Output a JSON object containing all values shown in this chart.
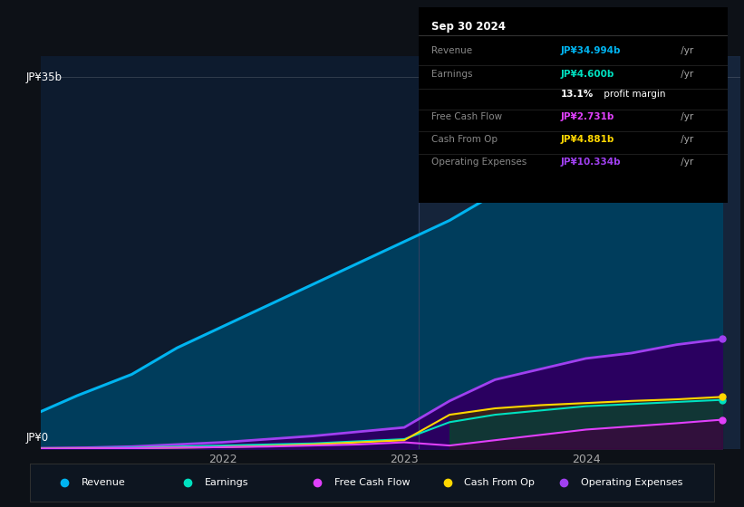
{
  "background_color": "#0d1117",
  "chart_bg": "#0d1b2e",
  "ylabel_top": "JP¥35b",
  "ylabel_bottom": "JP¥0",
  "x_labels": [
    "2022",
    "2023",
    "2024"
  ],
  "legend_items": [
    "Revenue",
    "Earnings",
    "Free Cash Flow",
    "Cash From Op",
    "Operating Expenses"
  ],
  "legend_colors": [
    "#00b4f0",
    "#00e0c0",
    "#e040fb",
    "#ffd700",
    "#a040f0"
  ],
  "info_box": {
    "date": "Sep 30 2024",
    "rows": [
      {
        "label": "Revenue",
        "value": "JP¥34.994b",
        "unit": " /yr",
        "color": "#00b4f0"
      },
      {
        "label": "Earnings",
        "value": "JP¥4.600b",
        "unit": " /yr",
        "color": "#00e0c0"
      },
      {
        "label": "",
        "value": "13.1%",
        "unit": " profit margin",
        "color": "#ffffff",
        "is_margin": true
      },
      {
        "label": "Free Cash Flow",
        "value": "JP¥2.731b",
        "unit": " /yr",
        "color": "#e040fb"
      },
      {
        "label": "Cash From Op",
        "value": "JP¥4.881b",
        "unit": " /yr",
        "color": "#ffd700"
      },
      {
        "label": "Operating Expenses",
        "value": "JP¥10.334b",
        "unit": " /yr",
        "color": "#a040f0"
      }
    ]
  },
  "revenue": {
    "x": [
      2021.0,
      2021.2,
      2021.5,
      2021.75,
      2022.0,
      2022.25,
      2022.5,
      2022.75,
      2023.0,
      2023.25,
      2023.5,
      2023.75,
      2024.0,
      2024.25,
      2024.5,
      2024.75
    ],
    "y": [
      3.5,
      5.0,
      7.0,
      9.5,
      11.5,
      13.5,
      15.5,
      17.5,
      19.5,
      21.5,
      24.0,
      27.0,
      29.5,
      31.5,
      33.5,
      34.994
    ],
    "color": "#00b4f0",
    "fill_color": "#003d5c"
  },
  "operating_expenses": {
    "x": [
      2021.0,
      2021.25,
      2021.5,
      2021.75,
      2022.0,
      2022.25,
      2022.5,
      2022.75,
      2023.0,
      2023.25,
      2023.5,
      2023.75,
      2024.0,
      2024.25,
      2024.5,
      2024.75
    ],
    "y": [
      0.05,
      0.1,
      0.2,
      0.4,
      0.6,
      0.9,
      1.2,
      1.6,
      2.0,
      4.5,
      6.5,
      7.5,
      8.5,
      9.0,
      9.8,
      10.334
    ],
    "color": "#a040f0",
    "fill_color": "#2a0060"
  },
  "earnings": {
    "x": [
      2021.0,
      2021.25,
      2021.5,
      2021.75,
      2022.0,
      2022.25,
      2022.5,
      2022.75,
      2023.0,
      2023.25,
      2023.5,
      2023.75,
      2024.0,
      2024.25,
      2024.5,
      2024.75
    ],
    "y": [
      0.01,
      0.05,
      0.1,
      0.2,
      0.3,
      0.4,
      0.5,
      0.7,
      0.9,
      2.5,
      3.2,
      3.6,
      4.0,
      4.2,
      4.4,
      4.6
    ],
    "color": "#00e0c0",
    "fill_color": "#004040"
  },
  "free_cash_flow": {
    "x": [
      2021.0,
      2021.25,
      2021.5,
      2021.75,
      2022.0,
      2022.25,
      2022.5,
      2022.75,
      2023.0,
      2023.25,
      2023.5,
      2023.75,
      2024.0,
      2024.25,
      2024.5,
      2024.75
    ],
    "y": [
      0.0,
      0.02,
      0.05,
      0.1,
      0.15,
      0.2,
      0.3,
      0.4,
      0.6,
      0.3,
      0.8,
      1.3,
      1.8,
      2.1,
      2.4,
      2.731
    ],
    "color": "#e040fb",
    "fill_color": "#400040"
  },
  "cash_from_op": {
    "x": [
      2021.0,
      2021.25,
      2021.5,
      2021.75,
      2022.0,
      2022.25,
      2022.5,
      2022.75,
      2023.0,
      2023.25,
      2023.5,
      2023.75,
      2024.0,
      2024.25,
      2024.5,
      2024.75
    ],
    "y": [
      0.0,
      0.02,
      0.05,
      0.1,
      0.15,
      0.25,
      0.4,
      0.6,
      0.8,
      3.2,
      3.8,
      4.1,
      4.3,
      4.5,
      4.65,
      4.881
    ],
    "color": "#ffd700",
    "fill_color": "#403000"
  },
  "ylim": [
    0,
    37
  ],
  "xlim": [
    2021.0,
    2024.85
  ],
  "vertical_line_x": 2023.08,
  "dot_x": 2024.75,
  "dot_y_revenue": 34.994,
  "dot_y_opex": 10.334,
  "dot_y_earnings": 4.6,
  "dot_y_fcf": 2.731,
  "dot_y_cashop": 4.881
}
